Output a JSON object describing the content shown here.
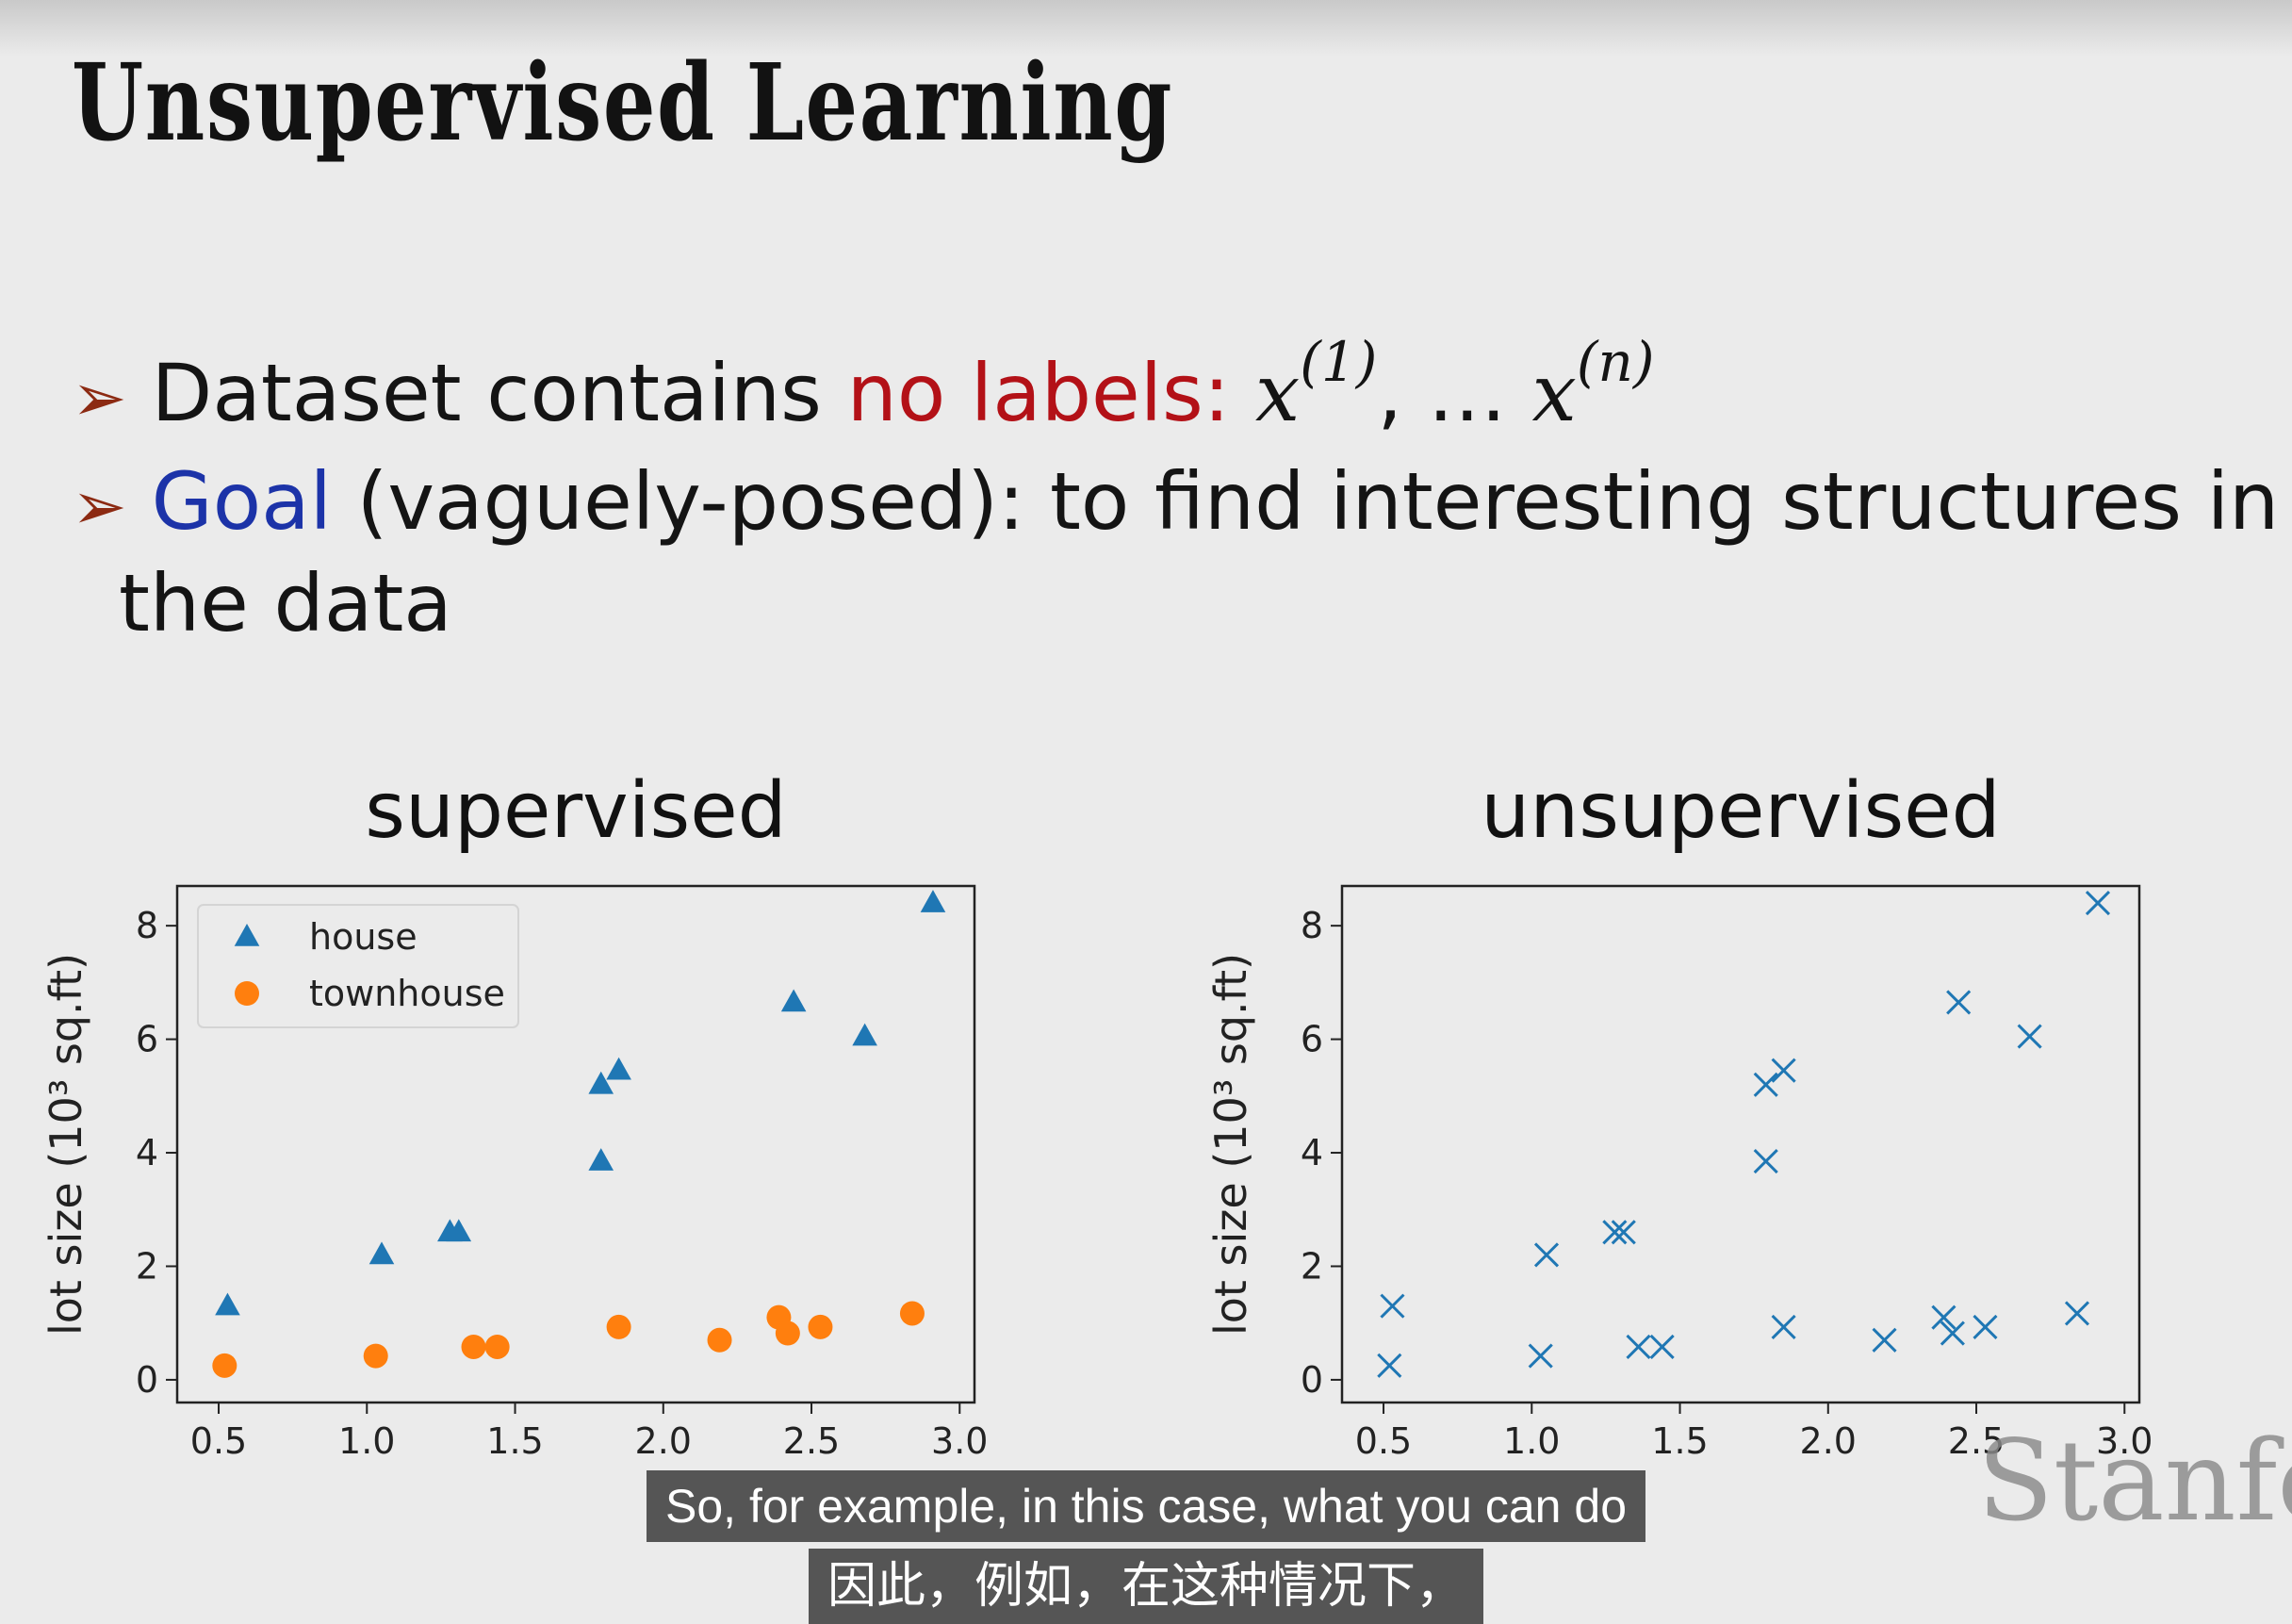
{
  "slide": {
    "title": "Unsupervised Learning",
    "bullet1": {
      "text": "Dataset contains ",
      "highlight": "no labels:",
      "math_x1": "x",
      "math_sup1": "(1)",
      "ellipsis": ", … ",
      "math_x2": "x",
      "math_sup2": "(n)"
    },
    "bullet2": {
      "highlight": "Goal",
      "text": " (vaguely-posed): to find interesting structures in",
      "continuation": "the data"
    }
  },
  "colors": {
    "house": "#1f77b4",
    "townhouse": "#ff7f0e",
    "highlight_red": "#b31117",
    "highlight_blue": "#1c33a8",
    "bullet_arrow": "#8c2a12"
  },
  "chart_data": [
    {
      "type": "scatter",
      "title": "supervised",
      "xlabel": "",
      "ylabel": "lot size (10³ sq.ft)",
      "xlim": [
        0.36,
        3.05
      ],
      "ylim": [
        -0.4,
        8.7
      ],
      "xticks": [
        0.5,
        1.0,
        1.5,
        2.0,
        2.5,
        3.0
      ],
      "xtick_labels": [
        "0.5",
        "1.0",
        "1.5",
        "2.0",
        "2.5",
        "3.0"
      ],
      "yticks": [
        0,
        2,
        4,
        6,
        8
      ],
      "ytick_labels": [
        "0",
        "2",
        "4",
        "6",
        "8"
      ],
      "legend_position": "top-left",
      "series": [
        {
          "name": "house",
          "marker": "triangle",
          "color": "#1f77b4",
          "x": [
            0.53,
            1.05,
            1.28,
            1.31,
            1.79,
            1.85,
            1.79,
            2.44,
            2.68,
            2.91
          ],
          "y": [
            1.3,
            2.2,
            2.6,
            2.6,
            5.2,
            5.45,
            3.85,
            6.65,
            6.05,
            8.4
          ]
        },
        {
          "name": "townhouse",
          "marker": "circle",
          "color": "#ff7f0e",
          "x": [
            0.52,
            1.03,
            1.36,
            1.44,
            1.85,
            2.19,
            2.39,
            2.42,
            2.53,
            2.84
          ],
          "y": [
            0.25,
            0.42,
            0.58,
            0.58,
            0.93,
            0.7,
            1.1,
            0.82,
            0.93,
            1.17
          ]
        }
      ]
    },
    {
      "type": "scatter",
      "title": "unsupervised",
      "xlabel": "",
      "ylabel": "lot size (10³ sq.ft)",
      "xlim": [
        0.36,
        3.05
      ],
      "ylim": [
        -0.4,
        8.7
      ],
      "xticks": [
        0.5,
        1.0,
        1.5,
        2.0,
        2.5,
        3.0
      ],
      "xtick_labels": [
        "0.5",
        "1.0",
        "1.5",
        "2.0",
        "2.5",
        "3.0"
      ],
      "yticks": [
        0,
        2,
        4,
        6,
        8
      ],
      "ytick_labels": [
        "0",
        "2",
        "4",
        "6",
        "8"
      ],
      "series": [
        {
          "marker": "x",
          "color": "#1f77b4",
          "x": [
            0.53,
            1.05,
            1.28,
            1.31,
            1.79,
            1.85,
            1.79,
            2.44,
            2.68,
            2.91,
            0.52,
            1.03,
            1.36,
            1.44,
            1.85,
            2.19,
            2.39,
            2.42,
            2.53,
            2.84
          ],
          "y": [
            1.3,
            2.2,
            2.6,
            2.6,
            5.2,
            5.45,
            3.85,
            6.65,
            6.05,
            8.4,
            0.25,
            0.42,
            0.58,
            0.58,
            0.93,
            0.7,
            1.1,
            0.82,
            0.93,
            1.17
          ]
        }
      ]
    }
  ],
  "captions": {
    "english": "So, for example, in this case, what you can do",
    "chinese": "因此，例如，在这种情况下，"
  },
  "watermark": "Stanfo"
}
